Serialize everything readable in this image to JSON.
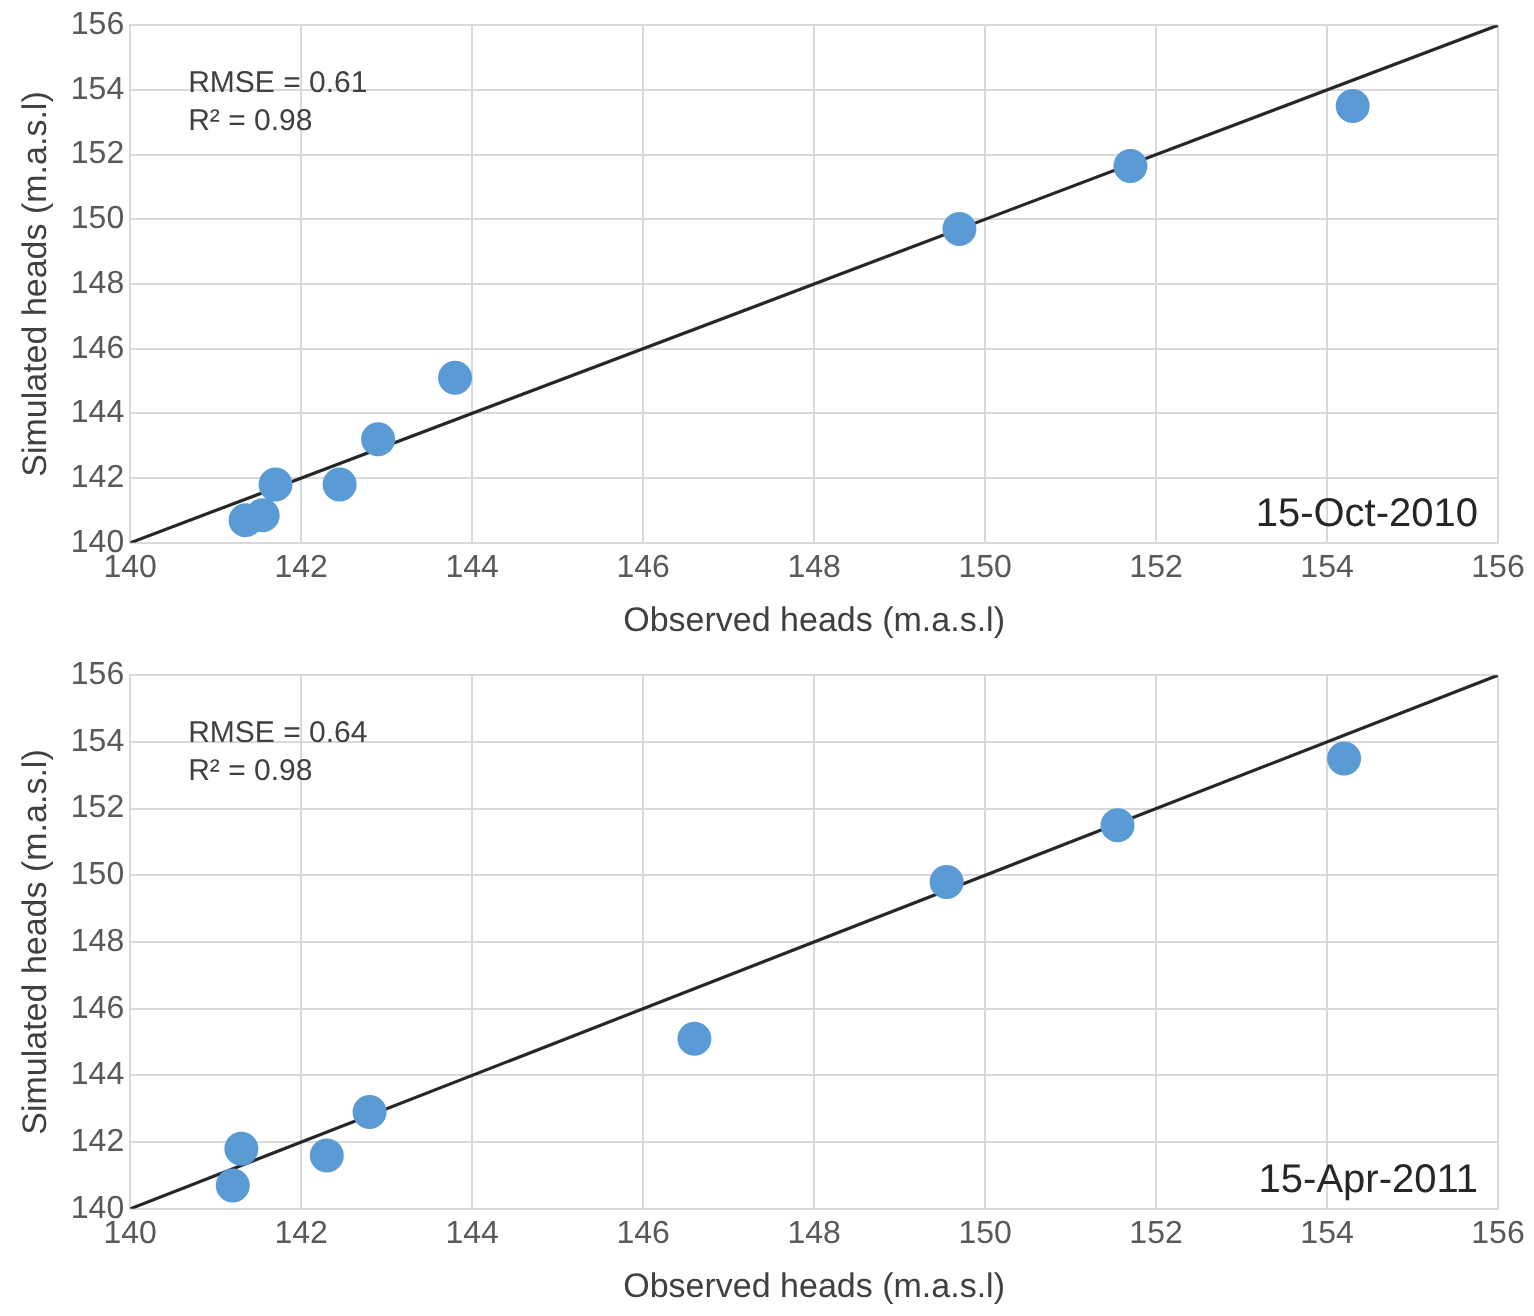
{
  "chart_data": [
    {
      "type": "scatter",
      "xlabel": "Observed heads (m.a.s.l)",
      "ylabel": "Simulated heads (m.a.s.l)",
      "annotations": [
        "RMSE = 0.61",
        "R² = 0.98",
        "15-Oct-2010"
      ],
      "series": [
        {
          "color": "#5b9bd5",
          "marker": "circle",
          "x": [
            141.35,
            141.55,
            141.7,
            142.45,
            142.9,
            143.8,
            149.7,
            151.7,
            154.3
          ],
          "values": [
            140.7,
            140.85,
            141.8,
            141.8,
            143.2,
            145.1,
            149.7,
            151.65,
            153.5
          ]
        },
        {
          "type": "line",
          "color": "#262626",
          "x": [
            140,
            156
          ],
          "values": [
            140,
            156
          ]
        }
      ],
      "xlim": [
        140,
        156
      ],
      "xticks": [
        140,
        142,
        144,
        146,
        148,
        150,
        152,
        154,
        156
      ],
      "ylim": [
        140,
        156
      ],
      "yticks": [
        140,
        142,
        144,
        146,
        148,
        150,
        152,
        154,
        156
      ],
      "grid": true,
      "legend": false,
      "line_style": "solid"
    },
    {
      "type": "scatter",
      "xlabel": "Observed heads (m.a.s.l)",
      "ylabel": "Simulated heads (m.a.s.l)",
      "annotations": [
        "RMSE = 0.64",
        "R² = 0.98",
        "15-Apr-2011"
      ],
      "series": [
        {
          "color": "#5b9bd5",
          "marker": "circle",
          "x": [
            141.2,
            141.3,
            142.3,
            142.8,
            146.6,
            149.55,
            151.55,
            154.2
          ],
          "values": [
            140.7,
            141.8,
            141.6,
            142.9,
            145.1,
            149.8,
            151.5,
            153.5
          ]
        },
        {
          "type": "line",
          "color": "#262626",
          "x": [
            140,
            156
          ],
          "values": [
            140,
            156
          ]
        }
      ],
      "xlim": [
        140,
        156
      ],
      "xticks": [
        140,
        142,
        144,
        146,
        148,
        150,
        152,
        154,
        156
      ],
      "ylim": [
        140,
        156
      ],
      "yticks": [
        140,
        142,
        144,
        146,
        148,
        150,
        152,
        154,
        156
      ],
      "grid": true,
      "legend": false,
      "line_style": "solid"
    }
  ]
}
